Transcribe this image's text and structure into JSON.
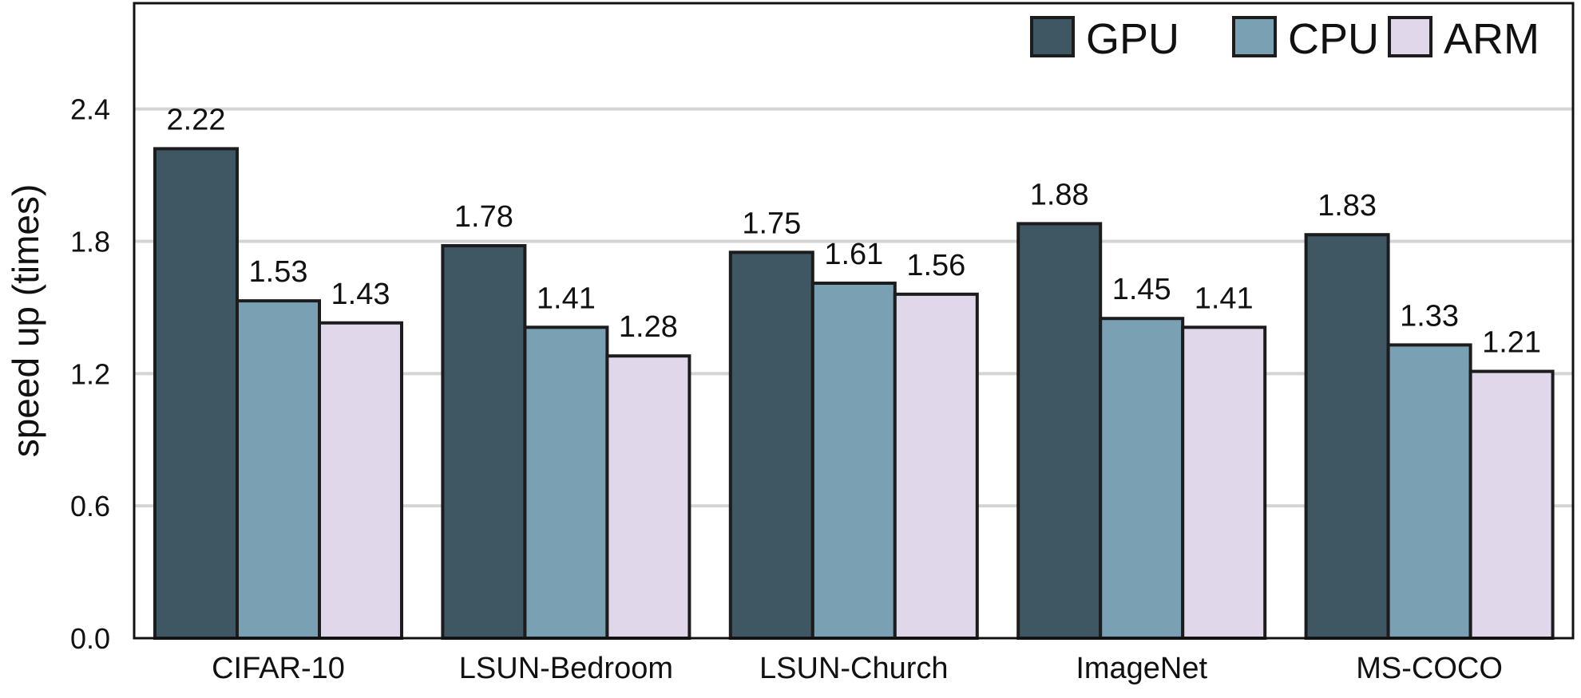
{
  "chart_data": {
    "type": "bar",
    "title": "",
    "xlabel": "",
    "ylabel": "speed up (times)",
    "ylim": [
      0,
      2.88
    ],
    "yticks": [
      "0.0",
      "0.6",
      "1.2",
      "1.8",
      "2.4"
    ],
    "yticks_values": [
      0,
      0.6,
      1.2,
      1.8,
      2.4
    ],
    "grid": true,
    "legend_position": "top-right",
    "categories": [
      "CIFAR-10",
      "LSUN-Bedroom",
      "LSUN-Church",
      "ImageNet",
      "MS-COCO"
    ],
    "series": [
      {
        "name": "GPU",
        "color": "#3f5663",
        "values": [
          2.22,
          1.78,
          1.75,
          1.88,
          1.83
        ]
      },
      {
        "name": "CPU",
        "color": "#7aa0b4",
        "values": [
          1.53,
          1.41,
          1.61,
          1.45,
          1.33
        ]
      },
      {
        "name": "ARM",
        "color": "#e0d7ea",
        "values": [
          1.43,
          1.28,
          1.56,
          1.41,
          1.21
        ]
      }
    ],
    "value_labels": [
      [
        "2.22",
        "1.78",
        "1.75",
        "1.88",
        "1.83"
      ],
      [
        "1.53",
        "1.41",
        "1.61",
        "1.45",
        "1.33"
      ],
      [
        "1.43",
        "1.28",
        "1.56",
        "1.41",
        "1.21"
      ]
    ]
  }
}
